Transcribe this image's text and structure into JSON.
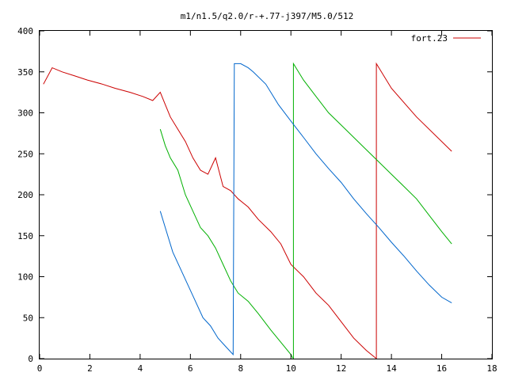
{
  "chart_data": {
    "type": "line",
    "title": "m1/n1.5/q2.0/r-+.77-j397/M5.0/512",
    "xlabel": "",
    "ylabel": "",
    "xlim": [
      0,
      18
    ],
    "ylim": [
      0,
      400
    ],
    "x_ticks": [
      0,
      2,
      4,
      6,
      8,
      10,
      12,
      14,
      16,
      18
    ],
    "y_ticks": [
      0,
      50,
      100,
      150,
      200,
      250,
      300,
      350,
      400
    ],
    "grid": false,
    "legend": {
      "position": "top-right",
      "entries": [
        "fort.23"
      ]
    },
    "colors": {
      "red": "#cc0000",
      "green": "#00b000",
      "blue": "#0066cc",
      "magenta": "#b000b0",
      "brown": "#8b4500"
    },
    "series": [
      {
        "name": "fort.23",
        "color": "#cc0000",
        "x": [
          0.15,
          0.5,
          0.9,
          1.4,
          1.9,
          2.5,
          3.0,
          3.6,
          4.1,
          4.5,
          4.8,
          5.0,
          5.2,
          5.5,
          5.8,
          6.1,
          6.4,
          6.7,
          7.0,
          7.3,
          7.6,
          7.9,
          8.3,
          8.7,
          9.2,
          9.6,
          10.0,
          10.5,
          11.0,
          11.5,
          12.0,
          12.5,
          13.0,
          13.4,
          13.4,
          14.0,
          15.0,
          16.4
        ],
        "y": [
          335,
          355,
          350,
          345,
          340,
          335,
          330,
          325,
          320,
          315,
          325,
          310,
          295,
          280,
          265,
          245,
          230,
          225,
          245,
          210,
          205,
          195,
          185,
          170,
          155,
          140,
          115,
          100,
          80,
          65,
          45,
          25,
          10,
          0,
          360,
          330,
          295,
          253
        ]
      },
      {
        "color": "#00b000",
        "x": [
          4.8,
          5.0,
          5.2,
          5.5,
          5.8,
          6.1,
          6.4,
          6.7,
          7.0,
          7.3,
          7.6,
          7.9,
          8.3,
          8.7,
          9.2,
          9.6,
          10.0,
          10.05,
          10.1,
          10.1,
          10.5,
          11.0,
          11.5,
          12.0,
          12.5,
          13.0,
          13.5,
          14.0,
          14.5,
          15.0,
          15.5,
          16.0,
          16.4
        ],
        "y": [
          280,
          260,
          245,
          230,
          200,
          180,
          160,
          150,
          135,
          115,
          95,
          80,
          70,
          55,
          35,
          20,
          5,
          2,
          0,
          360,
          340,
          320,
          300,
          285,
          270,
          255,
          240,
          225,
          210,
          195,
          175,
          155,
          140
        ]
      },
      {
        "color": "#0066cc",
        "x": [
          4.8,
          5.0,
          5.3,
          5.6,
          5.9,
          6.2,
          6.5,
          6.8,
          7.1,
          7.4,
          7.7,
          7.75,
          8.0,
          8.3,
          8.5,
          9.0,
          9.5,
          10.0,
          10.5,
          11.0,
          11.5,
          12.0,
          12.5,
          13.0,
          13.5,
          14.0,
          14.5,
          15.0,
          15.5,
          16.0,
          16.4
        ],
        "y": [
          180,
          160,
          130,
          110,
          90,
          70,
          50,
          40,
          25,
          15,
          5,
          360,
          360,
          355,
          350,
          335,
          310,
          290,
          270,
          250,
          232,
          215,
          195,
          177,
          160,
          142,
          125,
          107,
          90,
          75,
          68
        ]
      }
    ]
  }
}
